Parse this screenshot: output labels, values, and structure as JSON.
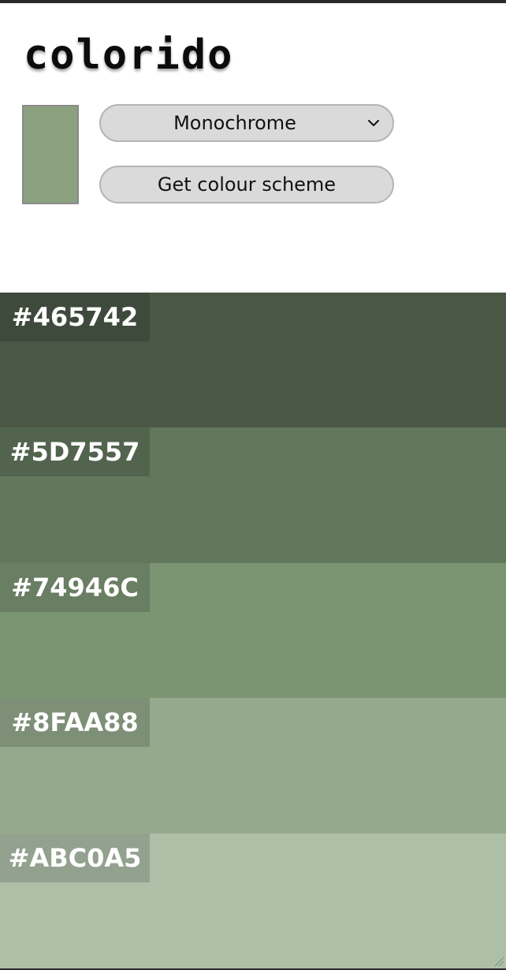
{
  "app": {
    "logo": "colorido"
  },
  "controls": {
    "base_color": "#8BA17F",
    "scheme_mode": {
      "selected": "Monochrome"
    },
    "submit_label": "Get colour scheme"
  },
  "palette": {
    "colors": [
      {
        "hex": "#465742",
        "fill": "#4A5745",
        "tag": "#3E4A3B"
      },
      {
        "hex": "#5D7557",
        "fill": "#63775D",
        "tag": "#53644E"
      },
      {
        "hex": "#74946C",
        "fill": "#7B9472",
        "tag": "#697E62"
      },
      {
        "hex": "#8FAA88",
        "fill": "#95A98C",
        "tag": "#7E8F77"
      },
      {
        "hex": "#ABC0A5",
        "fill": "#AEBFA8",
        "tag": "#93A18F"
      }
    ]
  }
}
